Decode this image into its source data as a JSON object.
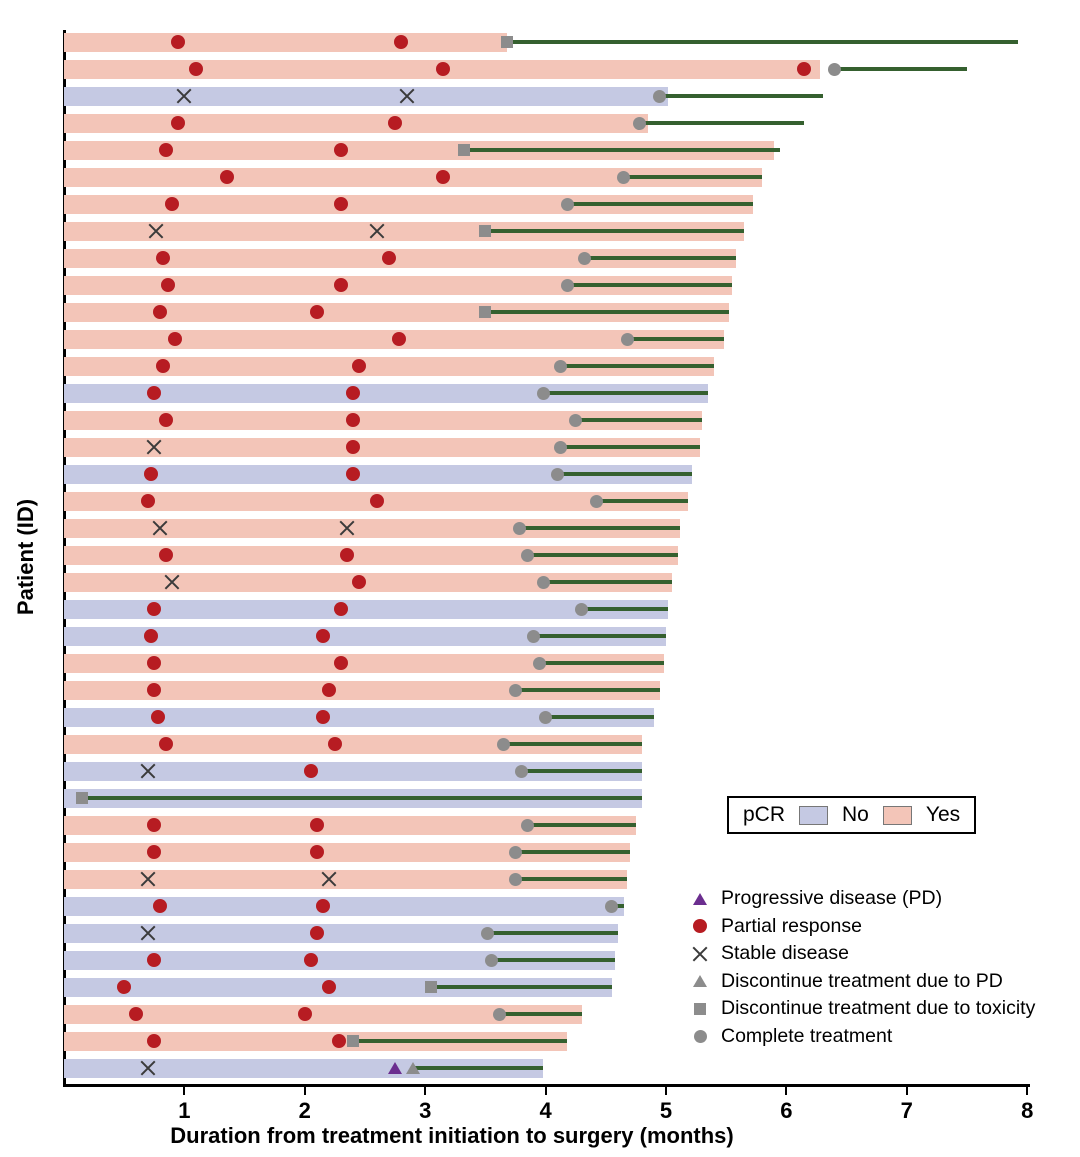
{
  "figure": {
    "y_axis_label": "Patient (ID)",
    "x_axis_label": "Duration from treatment initiation to surgery (months)"
  },
  "pcr_legend": {
    "title": "pCR",
    "no_label": "No",
    "yes_label": "Yes"
  },
  "marker_legend": [
    {
      "marker": "pd",
      "label": "Progressive disease (PD)"
    },
    {
      "marker": "pr",
      "label": "Partial response"
    },
    {
      "marker": "sd",
      "label": "Stable disease"
    },
    {
      "marker": "dpd",
      "label": "Discontinue treatment due to PD"
    },
    {
      "marker": "tox",
      "label": "Discontinue treatment due to toxicity"
    },
    {
      "marker": "ct",
      "label": "Complete treatment"
    }
  ],
  "colors": {
    "pcr_yes": "#f3c5b8",
    "pcr_no": "#c5c9e3",
    "green_line": "#35602f",
    "partial_response_red": "#b71c22",
    "marker_gray": "#8c8c8c",
    "pd_purple": "#6b2e8f"
  },
  "chart_data": {
    "type": "swimmer",
    "title": "",
    "xlabel": "Duration from treatment initiation to surgery (months)",
    "ylabel": "Patient (ID)",
    "xlim": [
      0,
      8
    ],
    "x_ticks": [
      1,
      2,
      3,
      4,
      5,
      6,
      7,
      8
    ],
    "grid": false,
    "marker_types": {
      "pd": "progressive-disease",
      "pr": "partial-response",
      "sd": "stable-disease",
      "dpd": "discontinue-treatment-due-to-PD",
      "tox": "discontinue-treatment-due-to-toxicity",
      "ct": "complete-treatment"
    },
    "rows": [
      {
        "pcr": "yes",
        "bar_end": 3.68,
        "surgery": 7.92,
        "events": [
          {
            "t": "pr",
            "x": 0.95
          },
          {
            "t": "pr",
            "x": 2.8
          }
        ],
        "eot": {
          "t": "tox",
          "x": 3.68
        }
      },
      {
        "pcr": "yes",
        "bar_end": 6.28,
        "surgery": 7.5,
        "events": [
          {
            "t": "pr",
            "x": 1.1
          },
          {
            "t": "pr",
            "x": 3.15
          },
          {
            "t": "pr",
            "x": 6.15
          }
        ],
        "eot": {
          "t": "ct",
          "x": 6.4
        }
      },
      {
        "pcr": "no",
        "bar_end": 5.02,
        "surgery": 6.3,
        "events": [
          {
            "t": "sd",
            "x": 1.0
          },
          {
            "t": "sd",
            "x": 2.85
          }
        ],
        "eot": {
          "t": "ct",
          "x": 4.95
        }
      },
      {
        "pcr": "yes",
        "bar_end": 4.85,
        "surgery": 6.15,
        "events": [
          {
            "t": "pr",
            "x": 0.95
          },
          {
            "t": "pr",
            "x": 2.75
          }
        ],
        "eot": {
          "t": "ct",
          "x": 4.78
        }
      },
      {
        "pcr": "yes",
        "bar_end": 5.9,
        "surgery": 5.95,
        "events": [
          {
            "t": "pr",
            "x": 0.85
          },
          {
            "t": "pr",
            "x": 2.3
          }
        ],
        "eot": {
          "t": "tox",
          "x": 3.32
        }
      },
      {
        "pcr": "yes",
        "bar_end": 5.8,
        "surgery": 5.8,
        "events": [
          {
            "t": "pr",
            "x": 1.35
          },
          {
            "t": "pr",
            "x": 3.15
          }
        ],
        "eot": {
          "t": "ct",
          "x": 4.65
        }
      },
      {
        "pcr": "yes",
        "bar_end": 5.72,
        "surgery": 5.72,
        "events": [
          {
            "t": "pr",
            "x": 0.9
          },
          {
            "t": "pr",
            "x": 2.3
          }
        ],
        "eot": {
          "t": "ct",
          "x": 4.18
        }
      },
      {
        "pcr": "yes",
        "bar_end": 5.65,
        "surgery": 5.65,
        "events": [
          {
            "t": "sd",
            "x": 0.76
          },
          {
            "t": "sd",
            "x": 2.6
          }
        ],
        "eot": {
          "t": "tox",
          "x": 3.5
        }
      },
      {
        "pcr": "yes",
        "bar_end": 5.58,
        "surgery": 5.58,
        "events": [
          {
            "t": "pr",
            "x": 0.82
          },
          {
            "t": "pr",
            "x": 2.7
          }
        ],
        "eot": {
          "t": "ct",
          "x": 4.32
        }
      },
      {
        "pcr": "yes",
        "bar_end": 5.55,
        "surgery": 5.55,
        "events": [
          {
            "t": "pr",
            "x": 0.86
          },
          {
            "t": "pr",
            "x": 2.3
          }
        ],
        "eot": {
          "t": "ct",
          "x": 4.18
        }
      },
      {
        "pcr": "yes",
        "bar_end": 5.52,
        "surgery": 5.52,
        "events": [
          {
            "t": "pr",
            "x": 0.8
          },
          {
            "t": "pr",
            "x": 2.1
          }
        ],
        "eot": {
          "t": "tox",
          "x": 3.5
        }
      },
      {
        "pcr": "yes",
        "bar_end": 5.48,
        "surgery": 5.48,
        "events": [
          {
            "t": "pr",
            "x": 0.92
          },
          {
            "t": "pr",
            "x": 2.78
          }
        ],
        "eot": {
          "t": "ct",
          "x": 4.68
        }
      },
      {
        "pcr": "yes",
        "bar_end": 5.4,
        "surgery": 5.4,
        "events": [
          {
            "t": "pr",
            "x": 0.82
          },
          {
            "t": "pr",
            "x": 2.45
          }
        ],
        "eot": {
          "t": "ct",
          "x": 4.12
        }
      },
      {
        "pcr": "no",
        "bar_end": 5.35,
        "surgery": 5.35,
        "events": [
          {
            "t": "pr",
            "x": 0.75
          },
          {
            "t": "pr",
            "x": 2.4
          }
        ],
        "eot": {
          "t": "ct",
          "x": 3.98
        }
      },
      {
        "pcr": "yes",
        "bar_end": 5.3,
        "surgery": 5.3,
        "events": [
          {
            "t": "pr",
            "x": 0.85
          },
          {
            "t": "pr",
            "x": 2.4
          }
        ],
        "eot": {
          "t": "ct",
          "x": 4.25
        }
      },
      {
        "pcr": "yes",
        "bar_end": 5.28,
        "surgery": 5.28,
        "events": [
          {
            "t": "sd",
            "x": 0.75
          },
          {
            "t": "pr",
            "x": 2.4
          }
        ],
        "eot": {
          "t": "ct",
          "x": 4.12
        }
      },
      {
        "pcr": "no",
        "bar_end": 5.22,
        "surgery": 5.22,
        "events": [
          {
            "t": "pr",
            "x": 0.72
          },
          {
            "t": "pr",
            "x": 2.4
          }
        ],
        "eot": {
          "t": "ct",
          "x": 4.1
        }
      },
      {
        "pcr": "yes",
        "bar_end": 5.18,
        "surgery": 5.18,
        "events": [
          {
            "t": "pr",
            "x": 0.7
          },
          {
            "t": "pr",
            "x": 2.6
          }
        ],
        "eot": {
          "t": "ct",
          "x": 4.42
        }
      },
      {
        "pcr": "yes",
        "bar_end": 5.12,
        "surgery": 5.12,
        "events": [
          {
            "t": "sd",
            "x": 0.8
          },
          {
            "t": "sd",
            "x": 2.35
          }
        ],
        "eot": {
          "t": "ct",
          "x": 3.78
        }
      },
      {
        "pcr": "yes",
        "bar_end": 5.1,
        "surgery": 5.1,
        "events": [
          {
            "t": "pr",
            "x": 0.85
          },
          {
            "t": "pr",
            "x": 2.35
          }
        ],
        "eot": {
          "t": "ct",
          "x": 3.85
        }
      },
      {
        "pcr": "yes",
        "bar_end": 5.05,
        "surgery": 5.05,
        "events": [
          {
            "t": "sd",
            "x": 0.9
          },
          {
            "t": "pr",
            "x": 2.45
          }
        ],
        "eot": {
          "t": "ct",
          "x": 3.98
        }
      },
      {
        "pcr": "no",
        "bar_end": 5.02,
        "surgery": 5.02,
        "events": [
          {
            "t": "pr",
            "x": 0.75
          },
          {
            "t": "pr",
            "x": 2.3
          }
        ],
        "eot": {
          "t": "ct",
          "x": 4.3
        }
      },
      {
        "pcr": "no",
        "bar_end": 5.0,
        "surgery": 5.0,
        "events": [
          {
            "t": "pr",
            "x": 0.72
          },
          {
            "t": "pr",
            "x": 2.15
          }
        ],
        "eot": {
          "t": "ct",
          "x": 3.9
        }
      },
      {
        "pcr": "yes",
        "bar_end": 4.98,
        "surgery": 4.98,
        "events": [
          {
            "t": "pr",
            "x": 0.75
          },
          {
            "t": "pr",
            "x": 2.3
          }
        ],
        "eot": {
          "t": "ct",
          "x": 3.95
        }
      },
      {
        "pcr": "yes",
        "bar_end": 4.95,
        "surgery": 4.95,
        "events": [
          {
            "t": "pr",
            "x": 0.75
          },
          {
            "t": "pr",
            "x": 2.2
          }
        ],
        "eot": {
          "t": "ct",
          "x": 3.75
        }
      },
      {
        "pcr": "no",
        "bar_end": 4.9,
        "surgery": 4.9,
        "events": [
          {
            "t": "pr",
            "x": 0.78
          },
          {
            "t": "pr",
            "x": 2.15
          }
        ],
        "eot": {
          "t": "ct",
          "x": 4.0
        }
      },
      {
        "pcr": "yes",
        "bar_end": 4.8,
        "surgery": 4.8,
        "events": [
          {
            "t": "pr",
            "x": 0.85
          },
          {
            "t": "pr",
            "x": 2.25
          }
        ],
        "eot": {
          "t": "ct",
          "x": 3.65
        }
      },
      {
        "pcr": "no",
        "bar_end": 4.8,
        "surgery": 4.8,
        "events": [
          {
            "t": "sd",
            "x": 0.7
          },
          {
            "t": "pr",
            "x": 2.05
          }
        ],
        "eot": {
          "t": "ct",
          "x": 3.8
        }
      },
      {
        "pcr": "no",
        "bar_end": 4.8,
        "surgery": 4.8,
        "events": [],
        "eot": {
          "t": "tox",
          "x": 0.15
        }
      },
      {
        "pcr": "yes",
        "bar_end": 4.75,
        "surgery": 4.75,
        "events": [
          {
            "t": "pr",
            "x": 0.75
          },
          {
            "t": "pr",
            "x": 2.1
          }
        ],
        "eot": {
          "t": "ct",
          "x": 3.85
        }
      },
      {
        "pcr": "yes",
        "bar_end": 4.7,
        "surgery": 4.7,
        "events": [
          {
            "t": "pr",
            "x": 0.75
          },
          {
            "t": "pr",
            "x": 2.1
          }
        ],
        "eot": {
          "t": "ct",
          "x": 3.75
        }
      },
      {
        "pcr": "yes",
        "bar_end": 4.68,
        "surgery": 4.68,
        "events": [
          {
            "t": "sd",
            "x": 0.7
          },
          {
            "t": "sd",
            "x": 2.2
          }
        ],
        "eot": {
          "t": "ct",
          "x": 3.75
        }
      },
      {
        "pcr": "no",
        "bar_end": 4.65,
        "surgery": 4.65,
        "events": [
          {
            "t": "pr",
            "x": 0.8
          },
          {
            "t": "pr",
            "x": 2.15
          }
        ],
        "eot": {
          "t": "ct",
          "x": 4.55
        }
      },
      {
        "pcr": "no",
        "bar_end": 4.6,
        "surgery": 4.6,
        "events": [
          {
            "t": "sd",
            "x": 0.7
          },
          {
            "t": "pr",
            "x": 2.1
          }
        ],
        "eot": {
          "t": "ct",
          "x": 3.52
        }
      },
      {
        "pcr": "no",
        "bar_end": 4.58,
        "surgery": 4.58,
        "events": [
          {
            "t": "pr",
            "x": 0.75
          },
          {
            "t": "pr",
            "x": 2.05
          }
        ],
        "eot": {
          "t": "ct",
          "x": 3.55
        }
      },
      {
        "pcr": "no",
        "bar_end": 4.55,
        "surgery": 4.55,
        "events": [
          {
            "t": "pr",
            "x": 0.5
          },
          {
            "t": "pr",
            "x": 2.2
          }
        ],
        "eot": {
          "t": "tox",
          "x": 3.05
        }
      },
      {
        "pcr": "yes",
        "bar_end": 4.3,
        "surgery": 4.3,
        "events": [
          {
            "t": "pr",
            "x": 0.6
          },
          {
            "t": "pr",
            "x": 2.0
          }
        ],
        "eot": {
          "t": "ct",
          "x": 3.62
        }
      },
      {
        "pcr": "yes",
        "bar_end": 4.18,
        "surgery": 4.18,
        "events": [
          {
            "t": "pr",
            "x": 0.75
          },
          {
            "t": "pr",
            "x": 2.28
          }
        ],
        "eot": {
          "t": "tox",
          "x": 2.4
        }
      },
      {
        "pcr": "no",
        "bar_end": 3.98,
        "surgery": 3.98,
        "events": [
          {
            "t": "sd",
            "x": 0.7
          },
          {
            "t": "pd",
            "x": 2.75
          }
        ],
        "eot": {
          "t": "dpd",
          "x": 2.9
        }
      }
    ]
  }
}
